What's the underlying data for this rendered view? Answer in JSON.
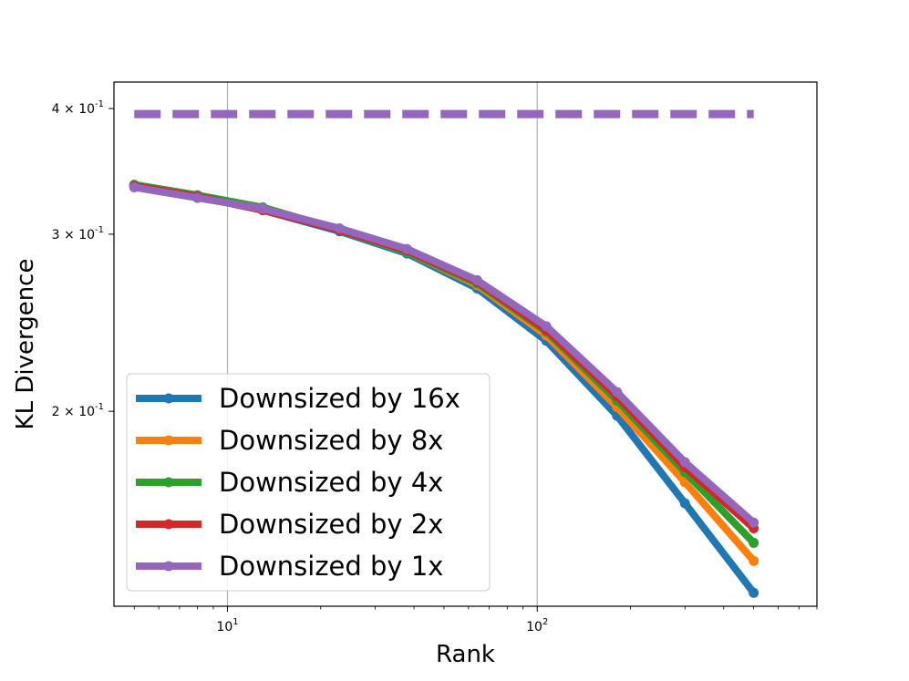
{
  "chart_data": {
    "type": "line",
    "title": "",
    "xlabel": "Rank",
    "ylabel": "KL Divergence",
    "xscale": "log",
    "yscale": "log",
    "xlim": [
      4.3,
      800
    ],
    "ylim": [
      0.128,
      0.425
    ],
    "xtick_major_labels": [
      "10^1",
      "10^2"
    ],
    "ytick_major_labels": [
      "2 × 10^-1",
      "3 × 10^-1",
      "4 × 10^-1"
    ],
    "grid": "x-major",
    "legend_position": "lower-left",
    "x": [
      5,
      8,
      13,
      23,
      38,
      64,
      107,
      181,
      300,
      500
    ],
    "baseline": {
      "name": "Downsized by 1x (dashed reference)",
      "value": 0.395,
      "x_range": [
        5,
        500
      ],
      "color": "#9467bd"
    },
    "series": [
      {
        "name": "Downsized by 16x",
        "color": "#1f77b4",
        "values": [
          0.335,
          0.327,
          0.317,
          0.302,
          0.287,
          0.265,
          0.235,
          0.198,
          0.162,
          0.132
        ]
      },
      {
        "name": "Downsized by 8x",
        "color": "#ff7f0e",
        "values": [
          0.335,
          0.327,
          0.318,
          0.303,
          0.288,
          0.267,
          0.238,
          0.202,
          0.17,
          0.142
        ]
      },
      {
        "name": "Downsized by 4x",
        "color": "#2ca02c",
        "values": [
          0.336,
          0.328,
          0.319,
          0.303,
          0.288,
          0.268,
          0.24,
          0.205,
          0.174,
          0.148
        ]
      },
      {
        "name": "Downsized by 2x",
        "color": "#d62728",
        "values": [
          0.335,
          0.327,
          0.317,
          0.303,
          0.289,
          0.269,
          0.241,
          0.207,
          0.176,
          0.153
        ]
      },
      {
        "name": "Downsized by 1x",
        "color": "#9467bd",
        "values": [
          0.334,
          0.326,
          0.318,
          0.304,
          0.29,
          0.27,
          0.243,
          0.209,
          0.178,
          0.155
        ]
      }
    ]
  }
}
